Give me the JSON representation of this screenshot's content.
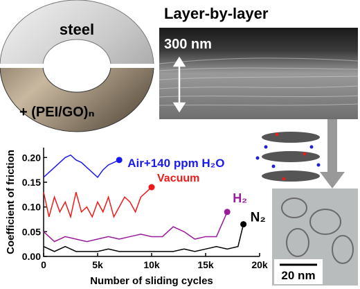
{
  "labels": {
    "steel": "steel",
    "coated": "+ (PEI/GO)ₙ",
    "panel_title": "Layer-by-layer",
    "sem_scale": "300 nm",
    "tem_scale": "20 nm"
  },
  "chart_data": {
    "type": "line",
    "x_label": "Number of sliding cycles",
    "y_label": "Coefficient of friction",
    "xlim": [
      0,
      20000
    ],
    "ylim": [
      0,
      0.22
    ],
    "xticks": [
      {
        "value": 0,
        "label": "0"
      },
      {
        "value": 5000,
        "label": "5k"
      },
      {
        "value": 10000,
        "label": "10k"
      },
      {
        "value": 15000,
        "label": "15k"
      },
      {
        "value": 20000,
        "label": "20k"
      }
    ],
    "yticks": [
      {
        "value": 0,
        "label": "0.00"
      },
      {
        "value": 0.05,
        "label": "0.05"
      },
      {
        "value": 0.1,
        "label": "0.10"
      },
      {
        "value": 0.15,
        "label": "0.15"
      },
      {
        "value": 0.2,
        "label": "0.20"
      }
    ],
    "series": [
      {
        "name": "Air+140 ppm H₂O",
        "color": "#1a1aee",
        "x": [
          0,
          500,
          1000,
          1500,
          2000,
          2500,
          3000,
          3500,
          4000,
          4500,
          5000,
          5500,
          6000,
          6500,
          7000
        ],
        "values": [
          0.16,
          0.17,
          0.18,
          0.19,
          0.2,
          0.205,
          0.195,
          0.19,
          0.18,
          0.17,
          0.16,
          0.175,
          0.185,
          0.19,
          0.195
        ]
      },
      {
        "name": "Vacuum",
        "color": "#ee1a1a",
        "x": [
          0,
          500,
          1000,
          1500,
          2000,
          2500,
          3000,
          3500,
          4000,
          4500,
          5000,
          5500,
          6000,
          6500,
          7000,
          7500,
          8000,
          8500,
          9000,
          9500,
          10000
        ],
        "values": [
          0.13,
          0.08,
          0.12,
          0.09,
          0.11,
          0.08,
          0.13,
          0.09,
          0.1,
          0.08,
          0.11,
          0.09,
          0.12,
          0.08,
          0.1,
          0.12,
          0.11,
          0.09,
          0.12,
          0.13,
          0.14
        ]
      },
      {
        "name": "H₂",
        "color": "#9a1a9a",
        "x": [
          0,
          1000,
          2000,
          3000,
          4000,
          5000,
          6000,
          7000,
          8000,
          9000,
          10000,
          11000,
          12000,
          13000,
          14000,
          15000,
          16000,
          17000
        ],
        "values": [
          0.05,
          0.03,
          0.04,
          0.035,
          0.03,
          0.035,
          0.04,
          0.035,
          0.04,
          0.045,
          0.04,
          0.04,
          0.06,
          0.05,
          0.035,
          0.04,
          0.04,
          0.09
        ]
      },
      {
        "name": "N₂",
        "color": "#000000",
        "x": [
          0,
          1000,
          2000,
          3000,
          4000,
          5000,
          6000,
          7000,
          8000,
          9000,
          10000,
          11000,
          12000,
          13000,
          14000,
          15000,
          16000,
          17000,
          18000,
          18500
        ],
        "values": [
          0.02,
          0.01,
          0.02,
          0.01,
          0.01,
          0.01,
          0.015,
          0.01,
          0.01,
          0.01,
          0.01,
          0.01,
          0.01,
          0.015,
          0.01,
          0.015,
          0.02,
          0.015,
          0.02,
          0.065
        ]
      }
    ]
  }
}
